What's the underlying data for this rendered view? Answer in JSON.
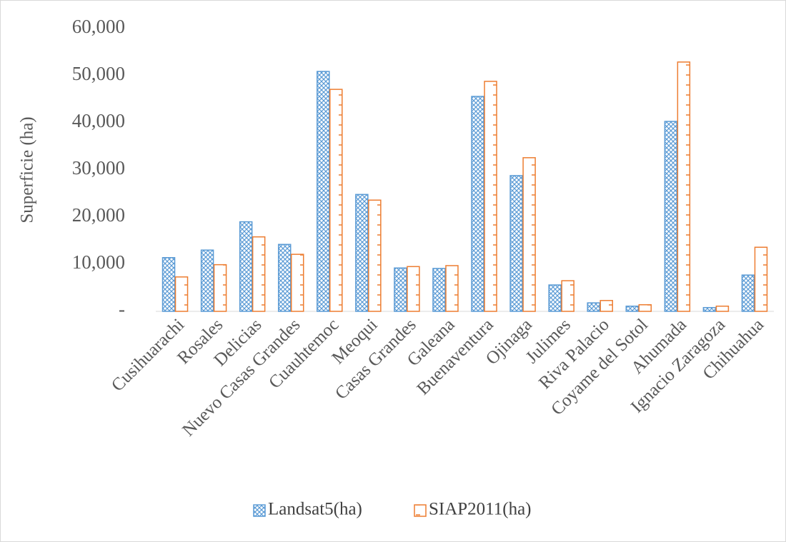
{
  "chart_data": {
    "type": "bar",
    "y_label": "Superficie (ha)",
    "categories": [
      "Cusihuarachi",
      "Rosales",
      "Delicias",
      "Nuevo Casas Grandes",
      "Cuauhtemoc",
      "Meoqui",
      "Casas Grandes",
      "Galeana",
      "Buenaventura",
      "Ojinaga",
      "Julimes",
      "Riva Palacio",
      "Coyame del Sotol",
      "Ahumada",
      "Ignacio Zaragoza",
      "Chihuahua"
    ],
    "series": [
      {
        "name": "Landsat5(ha)",
        "color": "#5b9bd5",
        "values": [
          11400,
          13000,
          19000,
          14200,
          50900,
          24800,
          9200,
          9100,
          45600,
          28800,
          5600,
          1800,
          1100,
          40300,
          800,
          7700
        ]
      },
      {
        "name": "SIAP2011(ha)",
        "color": "#ed7d31",
        "values": [
          7300,
          9900,
          15800,
          12100,
          47100,
          23600,
          9500,
          9700,
          48800,
          32600,
          6500,
          2300,
          1400,
          52900,
          1100,
          13600
        ]
      }
    ],
    "ylim": [
      0,
      60000
    ],
    "yticks": [
      {
        "value": 0,
        "label": "-"
      },
      {
        "value": 10000,
        "label": "10,000"
      },
      {
        "value": 20000,
        "label": "20,000"
      },
      {
        "value": 30000,
        "label": "30,000"
      },
      {
        "value": 40000,
        "label": "40,000"
      },
      {
        "value": 50000,
        "label": "50,000"
      },
      {
        "value": 60000,
        "label": "60,000"
      }
    ],
    "legend": "bottom"
  }
}
